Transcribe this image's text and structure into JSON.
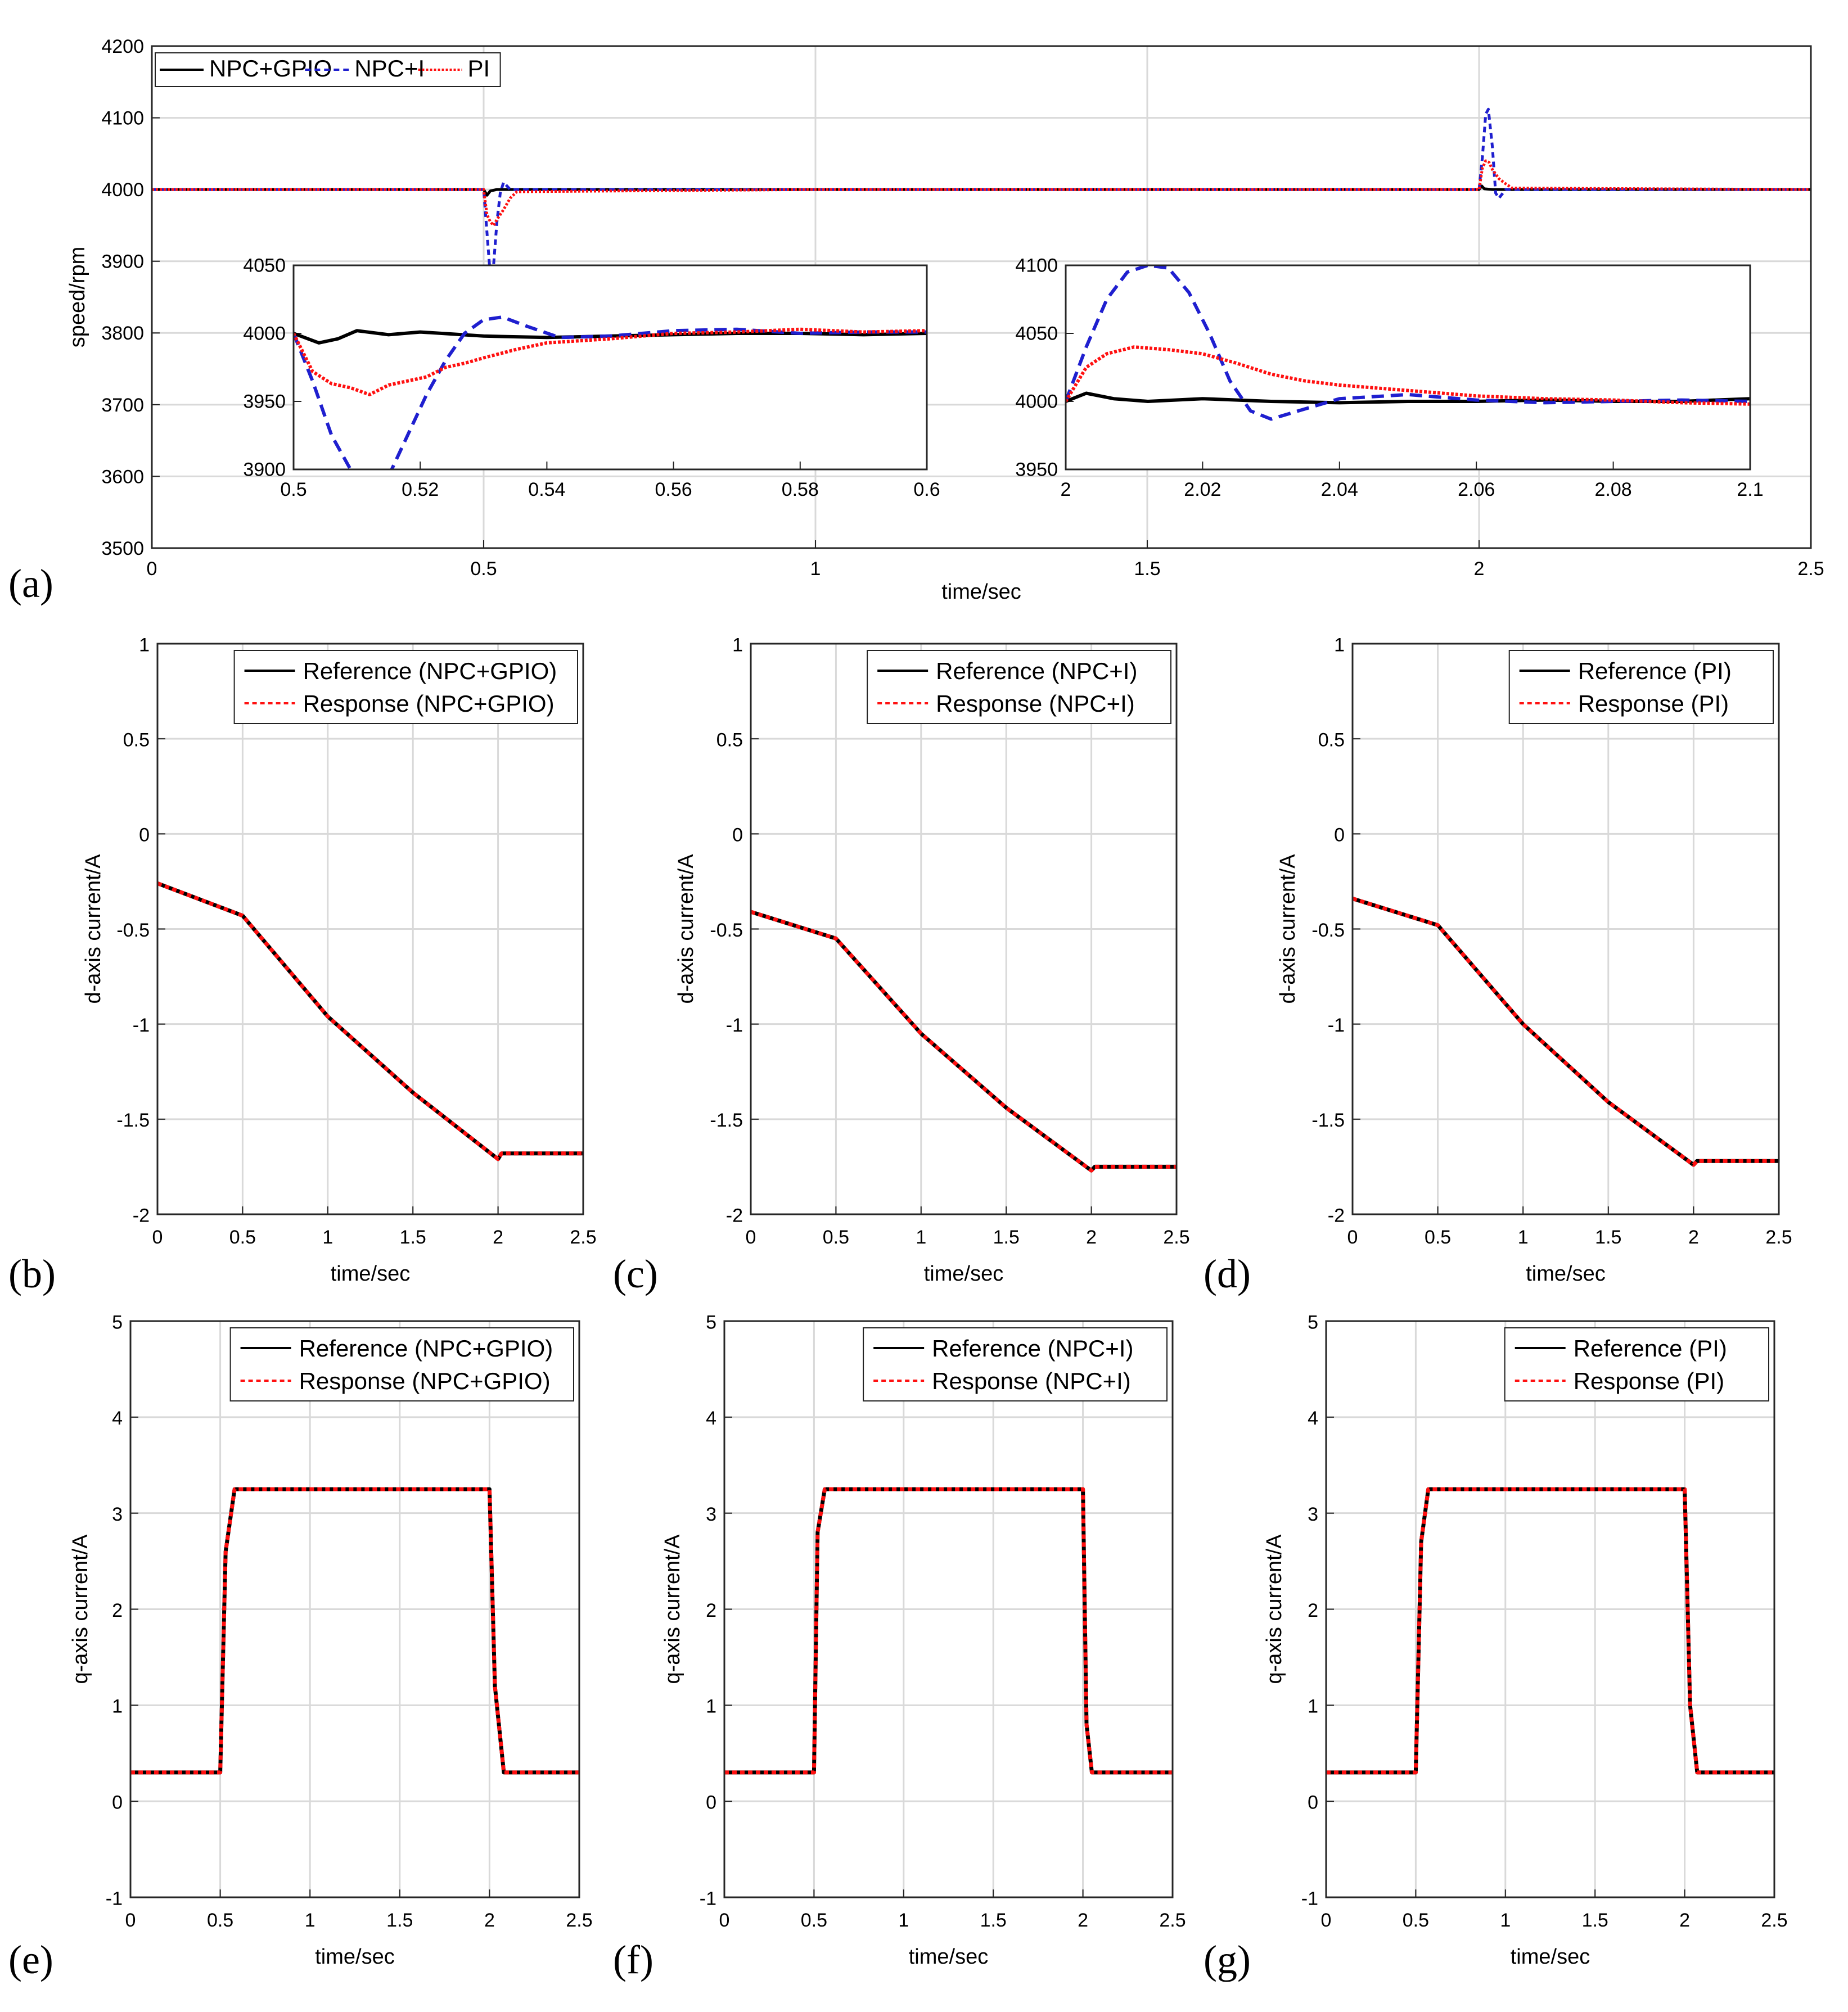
{
  "chart_data": [
    {
      "id": "a",
      "panel_label": "(a)",
      "type": "line",
      "xlabel": "time/sec",
      "ylabel": "speed/rpm",
      "xlim": [
        0,
        2.5
      ],
      "ylim": [
        3500,
        4200
      ],
      "xticks": [
        0,
        0.5,
        1,
        1.5,
        2,
        2.5
      ],
      "yticks": [
        3500,
        3600,
        3700,
        3800,
        3900,
        4000,
        4100,
        4200
      ],
      "legend_position": "top-left",
      "series": [
        {
          "name": "NPC+GPIO",
          "color": "#000000",
          "dash": "",
          "x": [
            0,
            0.5,
            0.505,
            0.51,
            0.52,
            1.0,
            2.0,
            2.004,
            2.008,
            2.02,
            2.5
          ],
          "y": [
            4000,
            4000,
            3992,
            3998,
            4000,
            4000,
            4000,
            4005,
            4001,
            4000,
            4000
          ]
        },
        {
          "name": "NPC+I",
          "color": "#1f1fcf",
          "dash": "10,7",
          "x": [
            0,
            0.5,
            0.505,
            0.51,
            0.515,
            0.52,
            0.525,
            0.53,
            0.54,
            1.0,
            2.0,
            2.005,
            2.01,
            2.014,
            2.02,
            2.025,
            2.03,
            2.04,
            2.5
          ],
          "y": [
            4000,
            4000,
            3940,
            3880,
            3895,
            3955,
            3995,
            4010,
            4000,
            4000,
            4000,
            4045,
            4105,
            4112,
            4060,
            3995,
            3988,
            4000,
            4000
          ]
        },
        {
          "name": "PI",
          "color": "#ff1010",
          "dash": "4,3",
          "x": [
            0,
            0.5,
            0.505,
            0.51,
            0.515,
            0.52,
            0.53,
            0.54,
            0.55,
            1.0,
            2.0,
            2.005,
            2.01,
            2.015,
            2.02,
            2.03,
            2.04,
            2.05,
            2.5
          ],
          "y": [
            4000,
            4000,
            3965,
            3955,
            3950,
            3958,
            3972,
            3988,
            3997,
            4000,
            4000,
            4030,
            4040,
            4038,
            4028,
            4015,
            4008,
            4002,
            4000
          ]
        }
      ],
      "insets": [
        {
          "id": "a-inset-1",
          "xlim": [
            0.5,
            0.6
          ],
          "ylim": [
            3900,
            4050
          ],
          "xticks": [
            0.5,
            0.52,
            0.54,
            0.56,
            0.58,
            0.6
          ],
          "yticks": [
            3900,
            3950,
            4000,
            4050
          ],
          "series": [
            {
              "name": "NPC+GPIO",
              "color": "#000000",
              "dash": "",
              "x": [
                0.5,
                0.504,
                0.507,
                0.51,
                0.515,
                0.52,
                0.53,
                0.54,
                0.55,
                0.56,
                0.57,
                0.58,
                0.59,
                0.6
              ],
              "y": [
                4000,
                3993,
                3996,
                4002,
                3999,
                4001,
                3998,
                3997,
                3998,
                3999,
                4000,
                4000,
                3999,
                4000
              ]
            },
            {
              "name": "NPC+I",
              "color": "#1f1fcf",
              "dash": "22,12",
              "x": [
                0.5,
                0.503,
                0.506,
                0.509,
                0.512,
                0.515,
                0.518,
                0.521,
                0.524,
                0.527,
                0.53,
                0.533,
                0.537,
                0.542,
                0.55,
                0.56,
                0.57,
                0.58,
                0.59,
                0.6
              ],
              "y": [
                4000,
                3965,
                3925,
                3900,
                3890,
                3895,
                3925,
                3955,
                3980,
                4000,
                4010,
                4012,
                4005,
                3997,
                3998,
                4002,
                4003,
                4000,
                4001,
                4001
              ]
            },
            {
              "name": "PI",
              "color": "#ff1010",
              "dash": "5,3",
              "x": [
                0.5,
                0.503,
                0.506,
                0.509,
                0.512,
                0.515,
                0.518,
                0.521,
                0.524,
                0.527,
                0.53,
                0.535,
                0.54,
                0.55,
                0.56,
                0.57,
                0.58,
                0.59,
                0.6
              ],
              "y": [
                4000,
                3972,
                3963,
                3960,
                3955,
                3962,
                3965,
                3968,
                3975,
                3978,
                3982,
                3988,
                3993,
                3996,
                4000,
                4001,
                4003,
                4001,
                4002
              ]
            }
          ]
        },
        {
          "id": "a-inset-2",
          "xlim": [
            2,
            2.1
          ],
          "ylim": [
            3950,
            4100
          ],
          "xticks": [
            2,
            2.02,
            2.04,
            2.06,
            2.08,
            2.1
          ],
          "yticks": [
            3950,
            4000,
            4050,
            4100
          ],
          "series": [
            {
              "name": "NPC+GPIO",
              "color": "#000000",
              "dash": "",
              "x": [
                2,
                2.003,
                2.007,
                2.012,
                2.02,
                2.03,
                2.04,
                2.05,
                2.06,
                2.07,
                2.08,
                2.09,
                2.1
              ],
              "y": [
                4000,
                4006,
                4002,
                4000,
                4002,
                4000,
                3999,
                4000,
                4000,
                4001,
                4000,
                4000,
                4002
              ]
            },
            {
              "name": "NPC+I",
              "color": "#1f1fcf",
              "dash": "22,12",
              "x": [
                2,
                2.003,
                2.006,
                2.009,
                2.012,
                2.015,
                2.018,
                2.021,
                2.024,
                2.027,
                2.03,
                2.034,
                2.04,
                2.05,
                2.06,
                2.07,
                2.08,
                2.09,
                2.1
              ],
              "y": [
                4000,
                4040,
                4075,
                4095,
                4100,
                4098,
                4080,
                4050,
                4015,
                3993,
                3987,
                3993,
                4002,
                4005,
                4001,
                3999,
                4000,
                4001,
                4000
              ]
            },
            {
              "name": "PI",
              "color": "#ff1010",
              "dash": "5,3",
              "x": [
                2,
                2.003,
                2.006,
                2.01,
                2.015,
                2.02,
                2.025,
                2.03,
                2.035,
                2.04,
                2.045,
                2.05,
                2.06,
                2.07,
                2.08,
                2.09,
                2.1
              ],
              "y": [
                4000,
                4025,
                4035,
                4040,
                4038,
                4035,
                4028,
                4020,
                4015,
                4012,
                4010,
                4008,
                4004,
                4002,
                4001,
                3999,
                3998
              ]
            }
          ]
        }
      ]
    },
    {
      "id": "b",
      "panel_label": "(b)",
      "type": "line",
      "xlabel": "time/sec",
      "ylabel": "d-axis current/A",
      "xlim": [
        0,
        2.5
      ],
      "ylim": [
        -2,
        1
      ],
      "xticks": [
        0,
        0.5,
        1,
        1.5,
        2,
        2.5
      ],
      "yticks": [
        -2,
        -1.5,
        -1,
        -0.5,
        0,
        0.5,
        1
      ],
      "legend_position": "top-right",
      "series": [
        {
          "name": "Reference (NPC+GPIO)",
          "color": "#000000",
          "dash": "",
          "x": [
            0,
            0.5,
            1,
            1.5,
            2,
            2.02,
            2.5
          ],
          "y": [
            -0.26,
            -0.43,
            -0.96,
            -1.36,
            -1.71,
            -1.68,
            -1.68
          ]
        },
        {
          "name": "Response (NPC+GPIO)",
          "color": "#ff1010",
          "dash": "8,6",
          "x": [
            0,
            0.5,
            1,
            1.5,
            2,
            2.02,
            2.5
          ],
          "y": [
            -0.26,
            -0.43,
            -0.96,
            -1.36,
            -1.71,
            -1.68,
            -1.68
          ]
        }
      ]
    },
    {
      "id": "c",
      "panel_label": "(c)",
      "type": "line",
      "xlabel": "time/sec",
      "ylabel": "d-axis current/A",
      "xlim": [
        0,
        2.5
      ],
      "ylim": [
        -2,
        1
      ],
      "xticks": [
        0,
        0.5,
        1,
        1.5,
        2,
        2.5
      ],
      "yticks": [
        -2,
        -1.5,
        -1,
        -0.5,
        0,
        0.5,
        1
      ],
      "legend_position": "top-right",
      "series": [
        {
          "name": "Reference (NPC+I)",
          "color": "#000000",
          "dash": "",
          "x": [
            0,
            0.5,
            1,
            1.5,
            2,
            2.02,
            2.5
          ],
          "y": [
            -0.41,
            -0.55,
            -1.05,
            -1.44,
            -1.77,
            -1.75,
            -1.75
          ]
        },
        {
          "name": "Response (NPC+I)",
          "color": "#ff1010",
          "dash": "8,6",
          "x": [
            0,
            0.5,
            1,
            1.5,
            2,
            2.02,
            2.5
          ],
          "y": [
            -0.41,
            -0.55,
            -1.05,
            -1.44,
            -1.77,
            -1.75,
            -1.75
          ]
        }
      ]
    },
    {
      "id": "d",
      "panel_label": "(d)",
      "type": "line",
      "xlabel": "time/sec",
      "ylabel": "d-axis current/A",
      "xlim": [
        0,
        2.5
      ],
      "ylim": [
        -2,
        1
      ],
      "xticks": [
        0,
        0.5,
        1,
        1.5,
        2,
        2.5
      ],
      "yticks": [
        -2,
        -1.5,
        -1,
        -0.5,
        0,
        0.5,
        1
      ],
      "legend_position": "top-right",
      "series": [
        {
          "name": "Reference (PI)",
          "color": "#000000",
          "dash": "",
          "x": [
            0,
            0.5,
            1,
            1.5,
            2,
            2.02,
            2.5
          ],
          "y": [
            -0.34,
            -0.48,
            -1.0,
            -1.41,
            -1.74,
            -1.72,
            -1.72
          ]
        },
        {
          "name": "Response (PI)",
          "color": "#ff1010",
          "dash": "8,6",
          "x": [
            0,
            0.5,
            1,
            1.5,
            2,
            2.02,
            2.5
          ],
          "y": [
            -0.34,
            -0.48,
            -1.0,
            -1.41,
            -1.74,
            -1.72,
            -1.72
          ]
        }
      ]
    },
    {
      "id": "e",
      "panel_label": "(e)",
      "type": "line",
      "xlabel": "time/sec",
      "ylabel": "q-axis current/A",
      "xlim": [
        0,
        2.5
      ],
      "ylim": [
        -1,
        5
      ],
      "xticks": [
        0,
        0.5,
        1,
        1.5,
        2,
        2.5
      ],
      "yticks": [
        -1,
        0,
        1,
        2,
        3,
        4,
        5
      ],
      "legend_position": "top-right",
      "series": [
        {
          "name": "Reference (NPC+GPIO)",
          "color": "#000000",
          "dash": "",
          "x": [
            0,
            0.5,
            0.53,
            0.58,
            2.0,
            2.03,
            2.08,
            2.5
          ],
          "y": [
            0.3,
            0.3,
            2.6,
            3.25,
            3.25,
            1.2,
            0.3,
            0.3
          ]
        },
        {
          "name": "Response (NPC+GPIO)",
          "color": "#ff1010",
          "dash": "8,6",
          "x": [
            0,
            0.5,
            0.53,
            0.58,
            2.0,
            2.03,
            2.08,
            2.5
          ],
          "y": [
            0.3,
            0.3,
            2.6,
            3.25,
            3.25,
            1.2,
            0.3,
            0.3
          ]
        }
      ]
    },
    {
      "id": "f",
      "panel_label": "(f)",
      "type": "line",
      "xlabel": "time/sec",
      "ylabel": "q-axis current/A",
      "xlim": [
        0,
        2.5
      ],
      "ylim": [
        -1,
        5
      ],
      "xticks": [
        0,
        0.5,
        1,
        1.5,
        2,
        2.5
      ],
      "yticks": [
        -1,
        0,
        1,
        2,
        3,
        4,
        5
      ],
      "legend_position": "top-right",
      "series": [
        {
          "name": "Reference (NPC+I)",
          "color": "#000000",
          "dash": "",
          "x": [
            0,
            0.5,
            0.52,
            0.56,
            2.0,
            2.02,
            2.05,
            2.5
          ],
          "y": [
            0.3,
            0.3,
            2.8,
            3.25,
            3.25,
            0.8,
            0.3,
            0.3
          ]
        },
        {
          "name": "Response (NPC+I)",
          "color": "#ff1010",
          "dash": "8,6",
          "x": [
            0,
            0.5,
            0.52,
            0.56,
            2.0,
            2.02,
            2.05,
            2.5
          ],
          "y": [
            0.3,
            0.3,
            2.8,
            3.25,
            3.25,
            0.8,
            0.3,
            0.3
          ]
        }
      ]
    },
    {
      "id": "g",
      "panel_label": "(g)",
      "type": "line",
      "xlabel": "time/sec",
      "ylabel": "q-axis current/A",
      "xlim": [
        0,
        2.5
      ],
      "ylim": [
        -1,
        5
      ],
      "xticks": [
        0,
        0.5,
        1,
        1.5,
        2,
        2.5
      ],
      "yticks": [
        -1,
        0,
        1,
        2,
        3,
        4,
        5
      ],
      "legend_position": "top-right",
      "series": [
        {
          "name": "Reference (PI)",
          "color": "#000000",
          "dash": "",
          "x": [
            0,
            0.5,
            0.53,
            0.57,
            2.0,
            2.03,
            2.07,
            2.5
          ],
          "y": [
            0.3,
            0.3,
            2.7,
            3.25,
            3.25,
            1.0,
            0.3,
            0.3
          ]
        },
        {
          "name": "Response (PI)",
          "color": "#ff1010",
          "dash": "8,6",
          "x": [
            0,
            0.5,
            0.53,
            0.57,
            2.0,
            2.03,
            2.07,
            2.5
          ],
          "y": [
            0.3,
            0.3,
            2.7,
            3.25,
            3.25,
            1.0,
            0.3,
            0.3
          ]
        }
      ]
    }
  ]
}
